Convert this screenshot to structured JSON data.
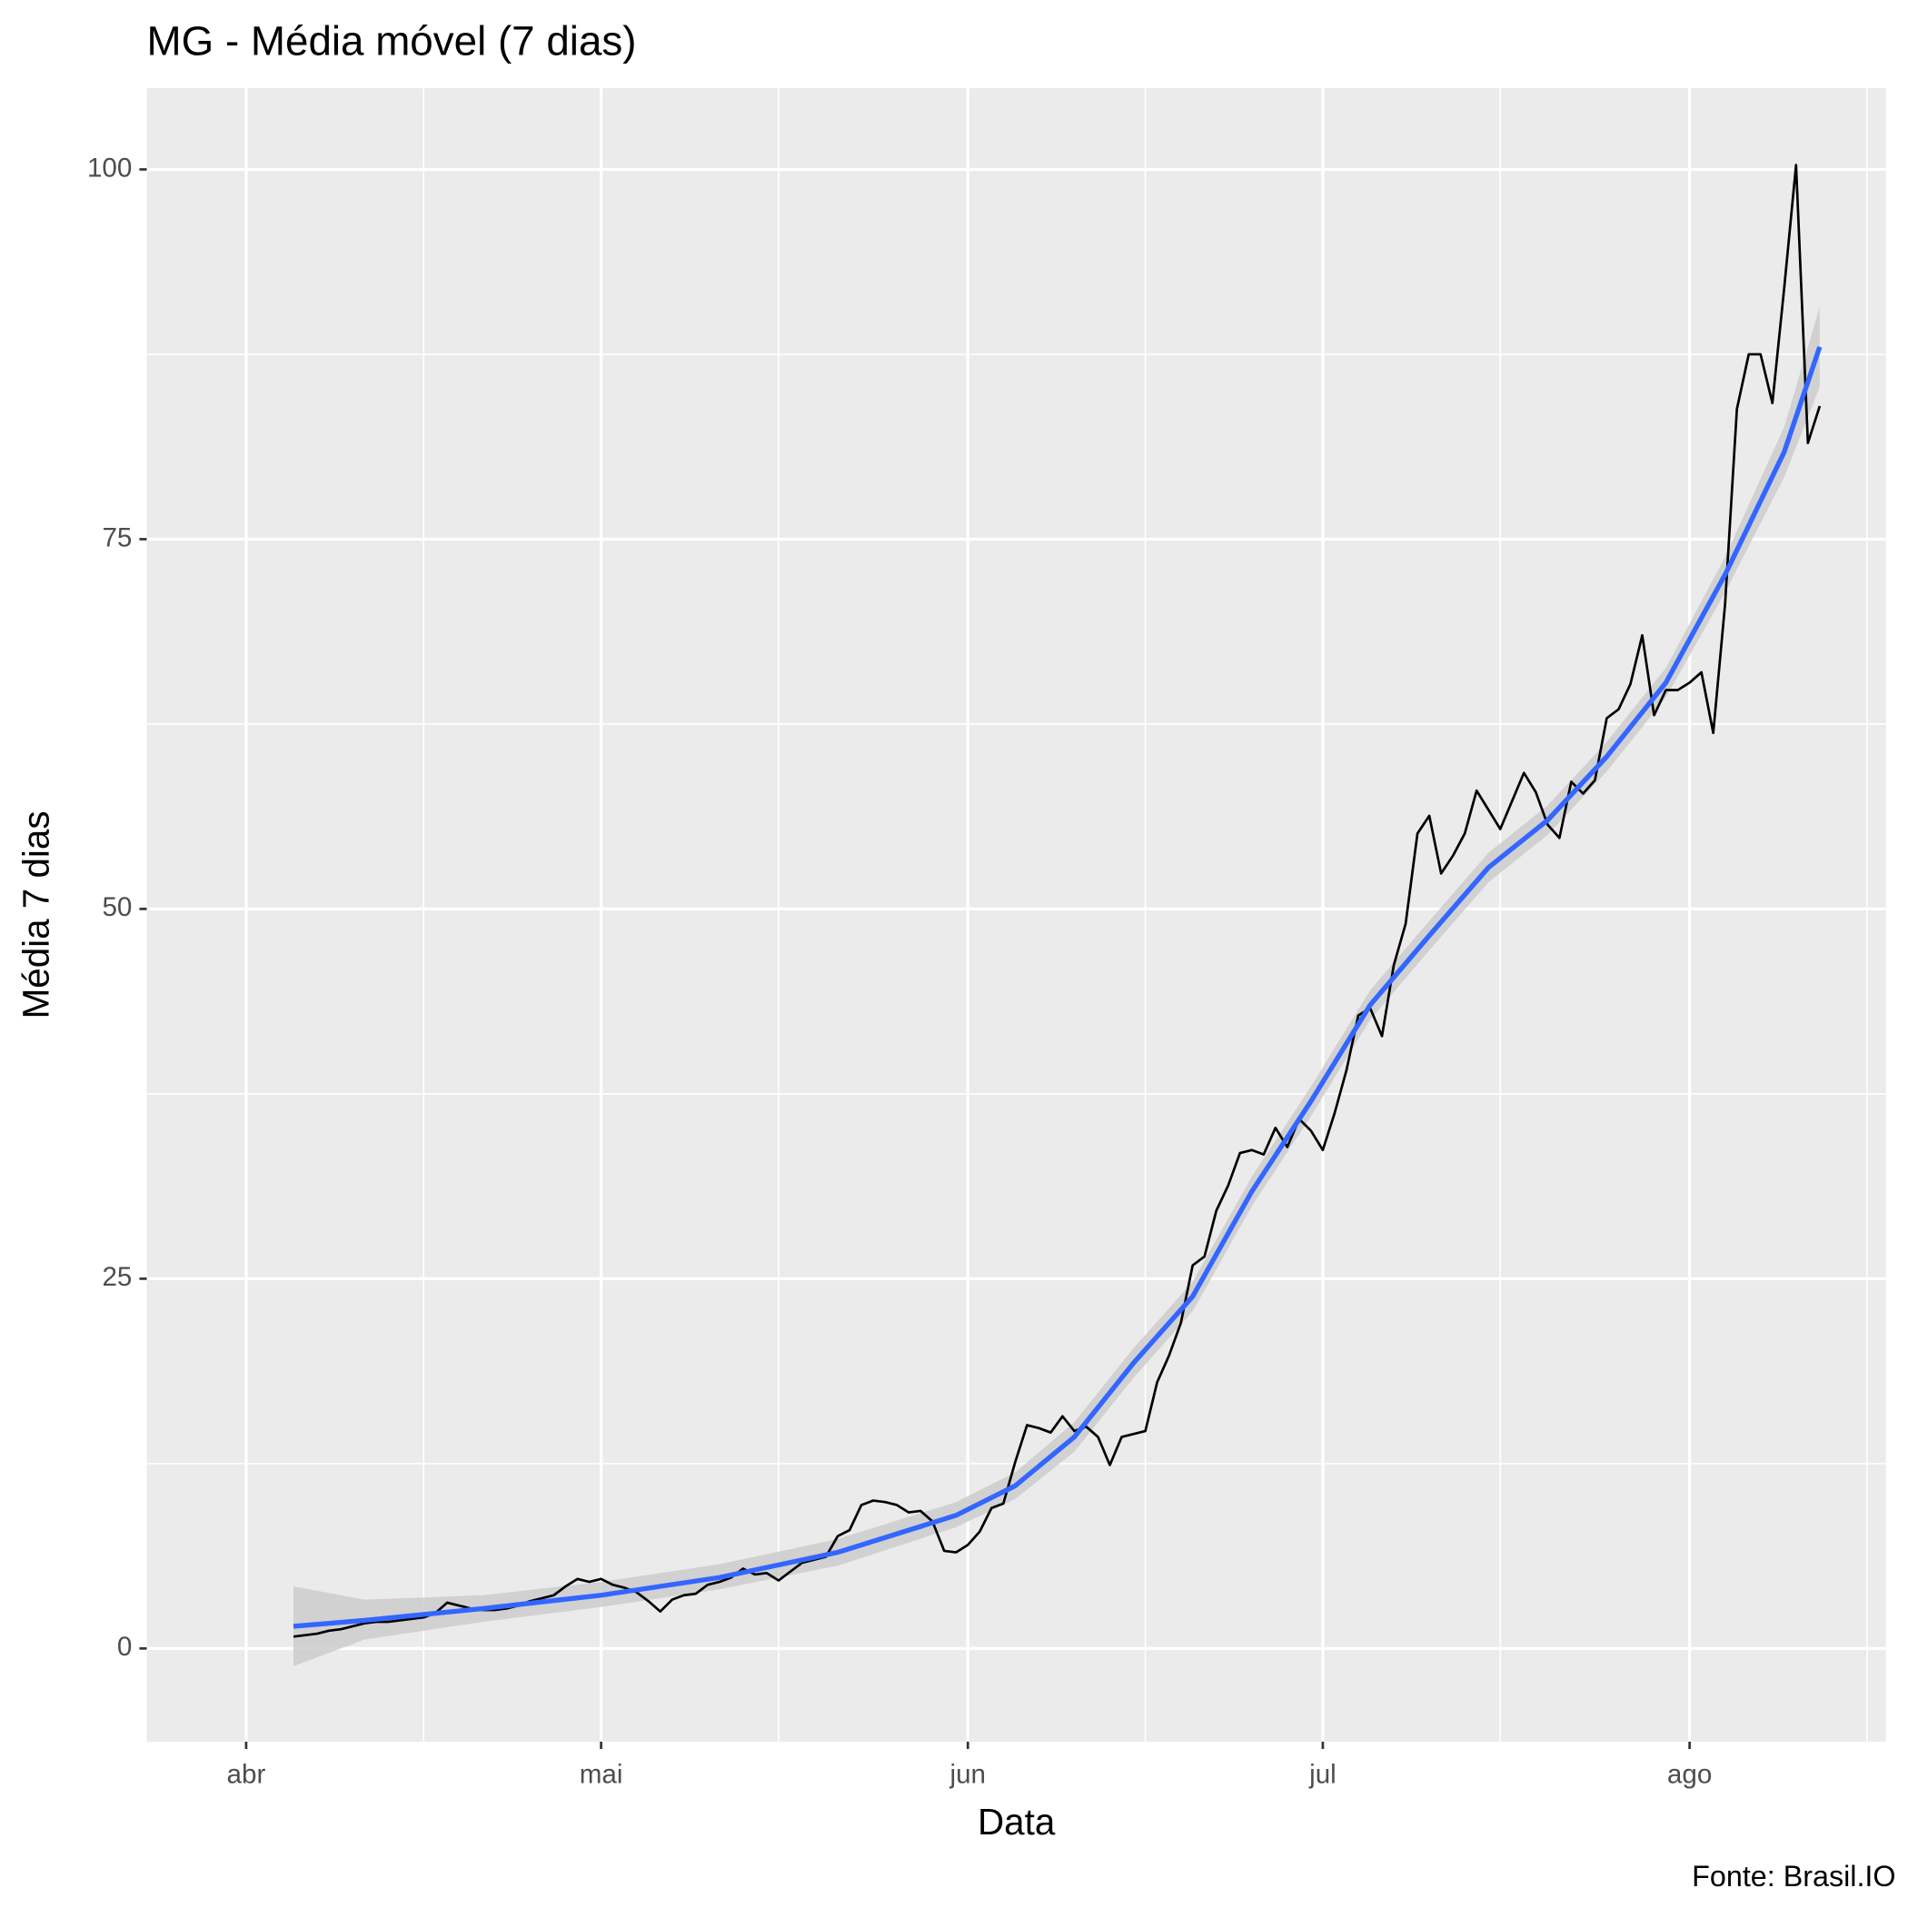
{
  "chart_data": {
    "type": "line",
    "title": "MG - Média móvel (7 dias)",
    "x_label": "Data",
    "y_label": "Média 7 dias",
    "caption": "Fonte: Brasil.IO",
    "xlim": [
      -8.4,
      138.6
    ],
    "xticks": [
      {
        "value": 0,
        "label": "abr"
      },
      {
        "value": 30,
        "label": "mai"
      },
      {
        "value": 61,
        "label": "jun"
      },
      {
        "value": 91,
        "label": "jul"
      },
      {
        "value": 122,
        "label": "ago"
      }
    ],
    "xminor": [
      15,
      45,
      76,
      106,
      137
    ],
    "ylim": [
      -6.3,
      105.5
    ],
    "yticks": [
      0,
      25,
      50,
      75,
      100
    ],
    "yminor": [
      12.5,
      37.5,
      62.5,
      87.5
    ],
    "grid": true,
    "series": [
      {
        "color": "#000000",
        "x": [
          4,
          5,
          6,
          7,
          8,
          9,
          10,
          11,
          12,
          13,
          14,
          15,
          16,
          17,
          18,
          19,
          20,
          21,
          22,
          23,
          24,
          25,
          26,
          27,
          28,
          29,
          30,
          31,
          32,
          33,
          34,
          35,
          36,
          37,
          38,
          39,
          40,
          41,
          42,
          43,
          44,
          45,
          46,
          47,
          48,
          49,
          50,
          51,
          52,
          53,
          54,
          55,
          56,
          57,
          58,
          59,
          60,
          61,
          62,
          63,
          64,
          65,
          66,
          67,
          68,
          69,
          70,
          71,
          72,
          73,
          74,
          75,
          76,
          77,
          78,
          79,
          80,
          81,
          82,
          83,
          84,
          85,
          86,
          87,
          88,
          89,
          90,
          91,
          92,
          93,
          94,
          95,
          96,
          97,
          98,
          99,
          100,
          101,
          102,
          103,
          104,
          105,
          106,
          107,
          108,
          109,
          110,
          111,
          112,
          113,
          114,
          115,
          116,
          117,
          118,
          119,
          120,
          121,
          122,
          123,
          124,
          125,
          126,
          127,
          128,
          129,
          130,
          131,
          132,
          133
        ],
        "values": [
          0.8,
          0.9,
          1.0,
          1.2,
          1.3,
          1.5,
          1.7,
          1.8,
          1.8,
          1.9,
          2.0,
          2.1,
          2.4,
          3.1,
          2.9,
          2.7,
          2.6,
          2.6,
          2.7,
          2.9,
          3.2,
          3.4,
          3.6,
          4.2,
          4.7,
          4.5,
          4.7,
          4.3,
          4.1,
          3.8,
          3.2,
          2.5,
          3.3,
          3.6,
          3.7,
          4.3,
          4.5,
          4.8,
          5.4,
          5.0,
          5.1,
          4.6,
          5.2,
          5.8,
          6.0,
          6.2,
          7.6,
          8.0,
          9.7,
          10.0,
          9.9,
          9.7,
          9.2,
          9.3,
          8.6,
          6.6,
          6.5,
          7.0,
          7.9,
          9.5,
          9.8,
          12.6,
          15.1,
          14.9,
          14.6,
          15.7,
          14.7,
          15.0,
          14.3,
          12.4,
          14.3,
          14.5,
          14.7,
          18.0,
          19.8,
          22.0,
          25.9,
          26.5,
          29.6,
          31.3,
          33.5,
          33.7,
          33.4,
          35.2,
          33.9,
          35.8,
          35.0,
          33.7,
          36.2,
          39.1,
          42.8,
          43.3,
          41.4,
          46.2,
          49.0,
          55.1,
          56.3,
          52.4,
          53.6,
          55.1,
          58.0,
          56.7,
          55.4,
          57.3,
          59.2,
          57.9,
          55.7,
          54.8,
          58.6,
          57.8,
          58.7,
          62.9,
          63.5,
          65.2,
          68.5,
          63.1,
          64.8,
          64.8,
          65.3,
          66.0,
          61.9,
          70.6,
          83.8,
          87.5,
          87.5,
          84.2,
          92.0,
          100.3,
          81.5,
          84.0
        ]
      },
      {
        "color": "#3366ff",
        "band_color": "#cccccc",
        "x": [
          4,
          10,
          20,
          30,
          40,
          50,
          60,
          65,
          70,
          75,
          80,
          85,
          90,
          95,
          100,
          105,
          110,
          115,
          120,
          125,
          130,
          133
        ],
        "values": [
          1.5,
          1.9,
          2.7,
          3.6,
          4.8,
          6.5,
          9.0,
          11.0,
          14.3,
          19.3,
          23.8,
          30.9,
          37.0,
          43.5,
          48.2,
          52.8,
          56.0,
          60.3,
          65.3,
          72.6,
          80.9,
          88.0
        ],
        "lower": [
          -1.2,
          0.6,
          1.8,
          2.8,
          4.0,
          5.6,
          8.2,
          10.1,
          13.3,
          18.3,
          22.8,
          29.9,
          36.0,
          42.5,
          47.2,
          51.8,
          55.0,
          59.3,
          64.3,
          71.4,
          79.2,
          85.3
        ],
        "upper": [
          4.2,
          3.3,
          3.6,
          4.5,
          5.7,
          7.4,
          9.9,
          11.9,
          15.3,
          20.3,
          24.8,
          31.9,
          38.0,
          44.5,
          49.2,
          53.8,
          57.0,
          61.3,
          66.3,
          73.8,
          82.6,
          90.7
        ]
      }
    ]
  }
}
